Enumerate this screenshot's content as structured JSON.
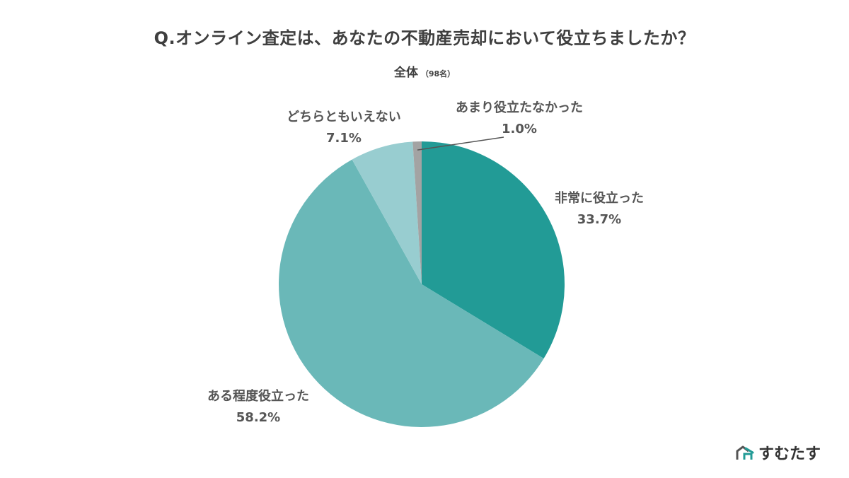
{
  "header": {
    "title": "Q.オンライン査定は、あなたの不動産売却において役立ちましたか？",
    "subtitle": "全体",
    "count": "（98名）"
  },
  "chart_data": {
    "type": "pie",
    "title": "Q.オンライン査定は、あなたの不動産売却において役立ちましたか？",
    "subtitle": "全体（98名）",
    "slices": [
      {
        "label": "非常に役立った",
        "value": 33.7,
        "value_label": "33.7%",
        "color": "#229b96"
      },
      {
        "label": "ある程度役立った",
        "value": 58.2,
        "value_label": "58.2%",
        "color": "#6ab8b8"
      },
      {
        "label": "どちらともいえない",
        "value": 7.1,
        "value_label": "7.1%",
        "color": "#98cdd0"
      },
      {
        "label": "あまり役立たなかった",
        "value": 1.0,
        "value_label": "1.0%",
        "color": "#a3a3a3"
      }
    ],
    "start_angle": "top",
    "direction": "clockwise"
  },
  "brand": {
    "name": "すむたす",
    "logo_icon": "house-logo-icon",
    "accent": "#229b96"
  }
}
